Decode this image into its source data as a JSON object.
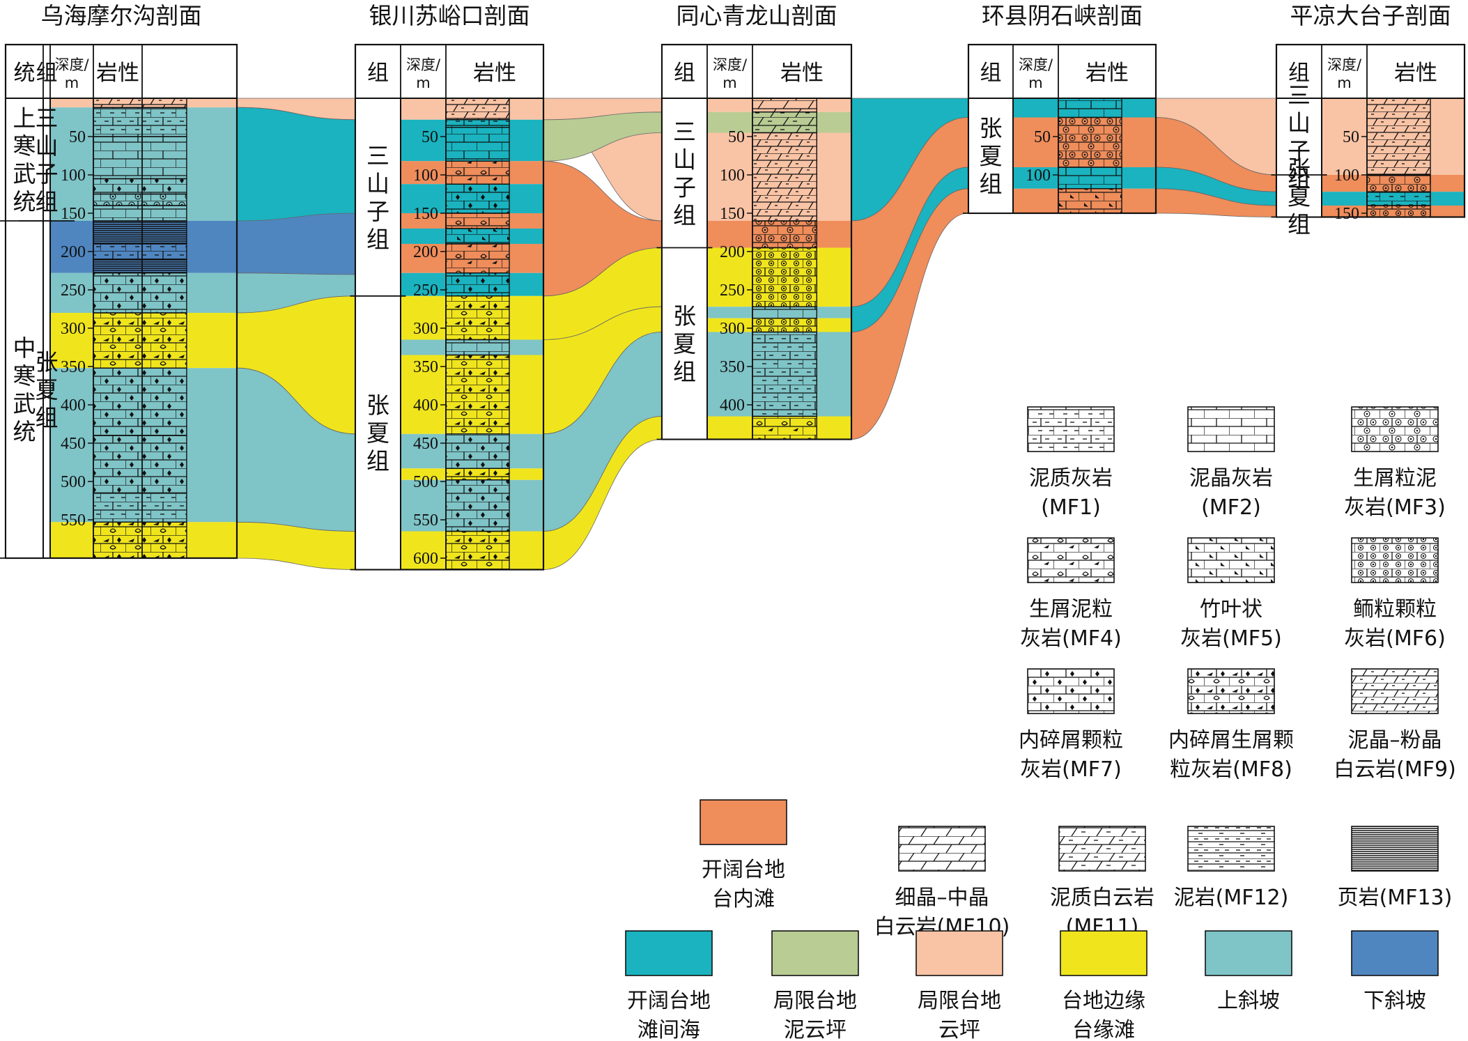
{
  "headers": {
    "series": "统",
    "formation": "组",
    "depth": "深度/",
    "depth_unit": "m",
    "lithology": "岩性"
  },
  "sections": [
    {
      "id": "wuhai",
      "title": "乌海摩尔沟剖面",
      "scale_top": 0,
      "scale_bottom": 600,
      "ticks": [
        50,
        100,
        150,
        200,
        250,
        300,
        350,
        400,
        450,
        500,
        550
      ],
      "series": [
        {
          "label": "上寒武统",
          "top": 0,
          "bottom": 160
        },
        {
          "label": "中寒武统",
          "top": 160,
          "bottom": 600
        }
      ],
      "formations": [
        {
          "label": "三山子组",
          "top": 0,
          "bottom": 160
        },
        {
          "label": "张夏组",
          "top": 160,
          "bottom": 600
        }
      ],
      "facies": [
        {
          "top": 0,
          "bottom": 12,
          "facies": "restricted_dolo_flat"
        },
        {
          "top": 12,
          "bottom": 160,
          "facies": "upper_slope"
        },
        {
          "top": 160,
          "bottom": 228,
          "facies": "lower_slope"
        },
        {
          "top": 228,
          "bottom": 280,
          "facies": "upper_slope"
        },
        {
          "top": 280,
          "bottom": 352,
          "facies": "margin_shoal"
        },
        {
          "top": 352,
          "bottom": 553,
          "facies": "upper_slope"
        },
        {
          "top": 553,
          "bottom": 600,
          "facies": "margin_shoal"
        }
      ],
      "litho": [
        {
          "top": 0,
          "bottom": 12,
          "pattern": "MF9"
        },
        {
          "top": 12,
          "bottom": 50,
          "pattern": "MF1"
        },
        {
          "top": 50,
          "bottom": 105,
          "pattern": "MF2"
        },
        {
          "top": 105,
          "bottom": 125,
          "pattern": "MF7"
        },
        {
          "top": 125,
          "bottom": 140,
          "pattern": "MF3"
        },
        {
          "top": 140,
          "bottom": 160,
          "pattern": "MF2"
        },
        {
          "top": 160,
          "bottom": 190,
          "pattern": "MF13"
        },
        {
          "top": 190,
          "bottom": 210,
          "pattern": "MF1"
        },
        {
          "top": 210,
          "bottom": 228,
          "pattern": "MF13"
        },
        {
          "top": 228,
          "bottom": 280,
          "pattern": "MF7"
        },
        {
          "top": 280,
          "bottom": 352,
          "pattern": "MF8"
        },
        {
          "top": 352,
          "bottom": 440,
          "pattern": "MF7"
        },
        {
          "top": 440,
          "bottom": 515,
          "pattern": "MF7"
        },
        {
          "top": 515,
          "bottom": 553,
          "pattern": "MF1"
        },
        {
          "top": 553,
          "bottom": 600,
          "pattern": "MF8"
        }
      ]
    },
    {
      "id": "yinchuan",
      "title": "银川苏峪口剖面",
      "scale_top": 0,
      "scale_bottom": 615,
      "ticks": [
        50,
        100,
        150,
        200,
        250,
        300,
        350,
        400,
        450,
        500,
        550,
        600
      ],
      "formations": [
        {
          "label": "三山子组",
          "top": 0,
          "bottom": 258
        },
        {
          "label": "张夏组",
          "top": 258,
          "bottom": 615
        }
      ],
      "facies": [
        {
          "top": 0,
          "bottom": 28,
          "facies": "restricted_dolo_flat"
        },
        {
          "top": 28,
          "bottom": 82,
          "facies": "interbank_sea"
        },
        {
          "top": 82,
          "bottom": 112,
          "facies": "open_shoal"
        },
        {
          "top": 112,
          "bottom": 150,
          "facies": "interbank_sea"
        },
        {
          "top": 150,
          "bottom": 170,
          "facies": "open_shoal"
        },
        {
          "top": 170,
          "bottom": 190,
          "facies": "interbank_sea"
        },
        {
          "top": 190,
          "bottom": 228,
          "facies": "open_shoal"
        },
        {
          "top": 228,
          "bottom": 258,
          "facies": "interbank_sea"
        },
        {
          "top": 258,
          "bottom": 315,
          "facies": "margin_shoal"
        },
        {
          "top": 315,
          "bottom": 335,
          "facies": "upper_slope"
        },
        {
          "top": 335,
          "bottom": 438,
          "facies": "margin_shoal"
        },
        {
          "top": 438,
          "bottom": 483,
          "facies": "upper_slope"
        },
        {
          "top": 483,
          "bottom": 498,
          "facies": "margin_shoal"
        },
        {
          "top": 498,
          "bottom": 565,
          "facies": "upper_slope"
        },
        {
          "top": 565,
          "bottom": 615,
          "facies": "margin_shoal"
        }
      ],
      "litho": [
        {
          "top": 0,
          "bottom": 28,
          "pattern": "MF9"
        },
        {
          "top": 28,
          "bottom": 38,
          "pattern": "MF1"
        },
        {
          "top": 38,
          "bottom": 82,
          "pattern": "MF2"
        },
        {
          "top": 82,
          "bottom": 112,
          "pattern": "MF4"
        },
        {
          "top": 112,
          "bottom": 150,
          "pattern": "MF7"
        },
        {
          "top": 150,
          "bottom": 170,
          "pattern": "MF4"
        },
        {
          "top": 170,
          "bottom": 190,
          "pattern": "MF5"
        },
        {
          "top": 190,
          "bottom": 228,
          "pattern": "MF4"
        },
        {
          "top": 228,
          "bottom": 258,
          "pattern": "MF7"
        },
        {
          "top": 258,
          "bottom": 315,
          "pattern": "MF8"
        },
        {
          "top": 315,
          "bottom": 335,
          "pattern": "MF2"
        },
        {
          "top": 335,
          "bottom": 438,
          "pattern": "MF8"
        },
        {
          "top": 438,
          "bottom": 483,
          "pattern": "MF7"
        },
        {
          "top": 483,
          "bottom": 498,
          "pattern": "MF8"
        },
        {
          "top": 498,
          "bottom": 565,
          "pattern": "MF7"
        },
        {
          "top": 565,
          "bottom": 615,
          "pattern": "MF8"
        }
      ]
    },
    {
      "id": "tongxin",
      "title": "同心青龙山剖面",
      "scale_top": 0,
      "scale_bottom": 445,
      "ticks": [
        50,
        100,
        150,
        200,
        250,
        300,
        350,
        400
      ],
      "formations": [
        {
          "label": "三山子组",
          "top": 0,
          "bottom": 195
        },
        {
          "label": "张夏组",
          "top": 195,
          "bottom": 445
        }
      ],
      "facies": [
        {
          "top": 0,
          "bottom": 18,
          "facies": "restricted_dolo_flat"
        },
        {
          "top": 18,
          "bottom": 45,
          "facies": "restricted_mud_dolo"
        },
        {
          "top": 45,
          "bottom": 160,
          "facies": "restricted_dolo_flat"
        },
        {
          "top": 160,
          "bottom": 195,
          "facies": "open_shoal"
        },
        {
          "top": 195,
          "bottom": 272,
          "facies": "margin_shoal"
        },
        {
          "top": 272,
          "bottom": 287,
          "facies": "upper_slope"
        },
        {
          "top": 287,
          "bottom": 305,
          "facies": "margin_shoal"
        },
        {
          "top": 305,
          "bottom": 415,
          "facies": "upper_slope"
        },
        {
          "top": 415,
          "bottom": 445,
          "facies": "margin_shoal"
        }
      ],
      "litho": [
        {
          "top": 0,
          "bottom": 18,
          "pattern": "MF10"
        },
        {
          "top": 18,
          "bottom": 45,
          "pattern": "MF11"
        },
        {
          "top": 45,
          "bottom": 160,
          "pattern": "MF9"
        },
        {
          "top": 160,
          "bottom": 195,
          "pattern": "MF3"
        },
        {
          "top": 195,
          "bottom": 272,
          "pattern": "MF6"
        },
        {
          "top": 272,
          "bottom": 287,
          "pattern": "MF2"
        },
        {
          "top": 287,
          "bottom": 305,
          "pattern": "MF6"
        },
        {
          "top": 305,
          "bottom": 415,
          "pattern": "MF1"
        },
        {
          "top": 415,
          "bottom": 445,
          "pattern": "MF4"
        }
      ]
    },
    {
      "id": "huanxian",
      "title": "环县阴石峡剖面",
      "scale_top": 0,
      "scale_bottom": 150,
      "ticks": [
        50,
        100
      ],
      "formations": [
        {
          "label": "张夏组",
          "top": 0,
          "bottom": 150
        }
      ],
      "facies": [
        {
          "top": 0,
          "bottom": 25,
          "facies": "interbank_sea"
        },
        {
          "top": 25,
          "bottom": 90,
          "facies": "open_shoal"
        },
        {
          "top": 90,
          "bottom": 118,
          "facies": "interbank_sea"
        },
        {
          "top": 118,
          "bottom": 150,
          "facies": "open_shoal"
        }
      ],
      "litho": [
        {
          "top": 0,
          "bottom": 25,
          "pattern": "MF2"
        },
        {
          "top": 25,
          "bottom": 90,
          "pattern": "MF3"
        },
        {
          "top": 90,
          "bottom": 118,
          "pattern": "MF2"
        },
        {
          "top": 118,
          "bottom": 150,
          "pattern": "MF5"
        }
      ]
    },
    {
      "id": "pingliang",
      "title": "平凉大台子剖面",
      "scale_top": 0,
      "scale_bottom": 155,
      "ticks": [
        50,
        100,
        150
      ],
      "formations": [
        {
          "label": "三山子组",
          "top": 0,
          "bottom": 100
        },
        {
          "label": "张夏组",
          "top": 100,
          "bottom": 155
        }
      ],
      "facies": [
        {
          "top": 0,
          "bottom": 100,
          "facies": "restricted_dolo_flat"
        },
        {
          "top": 100,
          "bottom": 122,
          "facies": "open_shoal"
        },
        {
          "top": 122,
          "bottom": 140,
          "facies": "interbank_sea"
        },
        {
          "top": 140,
          "bottom": 155,
          "facies": "open_shoal"
        }
      ],
      "litho": [
        {
          "top": 0,
          "bottom": 100,
          "pattern": "MF9"
        },
        {
          "top": 100,
          "bottom": 122,
          "pattern": "MF3"
        },
        {
          "top": 122,
          "bottom": 140,
          "pattern": "MF1"
        },
        {
          "top": 140,
          "bottom": 155,
          "pattern": "MF6"
        }
      ]
    }
  ],
  "facies_colors": {
    "open_shoal": "#ef8d5b",
    "interbank_sea": "#1ab3bf",
    "restricted_mud_dolo": "#b8cc94",
    "restricted_dolo_flat": "#f9c3a5",
    "margin_shoal": "#f0e51d",
    "upper_slope": "#7fc4c7",
    "lower_slope": "#4f86c0"
  },
  "lithology_legend": [
    {
      "code": "MF1",
      "lines": [
        "泥质灰岩",
        "(MF1)"
      ]
    },
    {
      "code": "MF2",
      "lines": [
        "泥晶灰岩",
        "(MF2)"
      ]
    },
    {
      "code": "MF3",
      "lines": [
        "生屑粒泥",
        "灰岩(MF3)"
      ]
    },
    {
      "code": "MF4",
      "lines": [
        "生屑泥粒",
        "灰岩(MF4)"
      ]
    },
    {
      "code": "MF5",
      "lines": [
        "竹叶状",
        "灰岩(MF5)"
      ]
    },
    {
      "code": "MF6",
      "lines": [
        "鲕粒颗粒",
        "灰岩(MF6)"
      ]
    },
    {
      "code": "MF7",
      "lines": [
        "内碎屑颗粒",
        "灰岩(MF7)"
      ]
    },
    {
      "code": "MF8",
      "lines": [
        "内碎屑生屑颗",
        "粒灰岩(MF8)"
      ]
    },
    {
      "code": "MF9",
      "lines": [
        "泥晶–粉晶",
        "白云岩(MF9)"
      ]
    },
    {
      "code": "MF10",
      "lines": [
        "细晶–中晶",
        "白云岩(MF10)"
      ]
    },
    {
      "code": "MF11",
      "lines": [
        "泥质白云岩",
        "(MF11)"
      ]
    },
    {
      "code": "MF12",
      "lines": [
        "泥岩(MF12)"
      ]
    },
    {
      "code": "MF13",
      "lines": [
        "页岩(MF13)"
      ]
    }
  ],
  "facies_legend": [
    {
      "key": "open_shoal",
      "lines": [
        "开阔台地",
        "台内滩"
      ]
    },
    {
      "key": "interbank_sea",
      "lines": [
        "开阔台地",
        "滩间海"
      ]
    },
    {
      "key": "restricted_mud_dolo",
      "lines": [
        "局限台地",
        "泥云坪"
      ]
    },
    {
      "key": "restricted_dolo_flat",
      "lines": [
        "局限台地",
        "云坪"
      ]
    },
    {
      "key": "margin_shoal",
      "lines": [
        "台地边缘",
        "台缘滩"
      ]
    },
    {
      "key": "upper_slope",
      "lines": [
        "上斜坡"
      ]
    },
    {
      "key": "lower_slope",
      "lines": [
        "下斜坡"
      ]
    }
  ]
}
